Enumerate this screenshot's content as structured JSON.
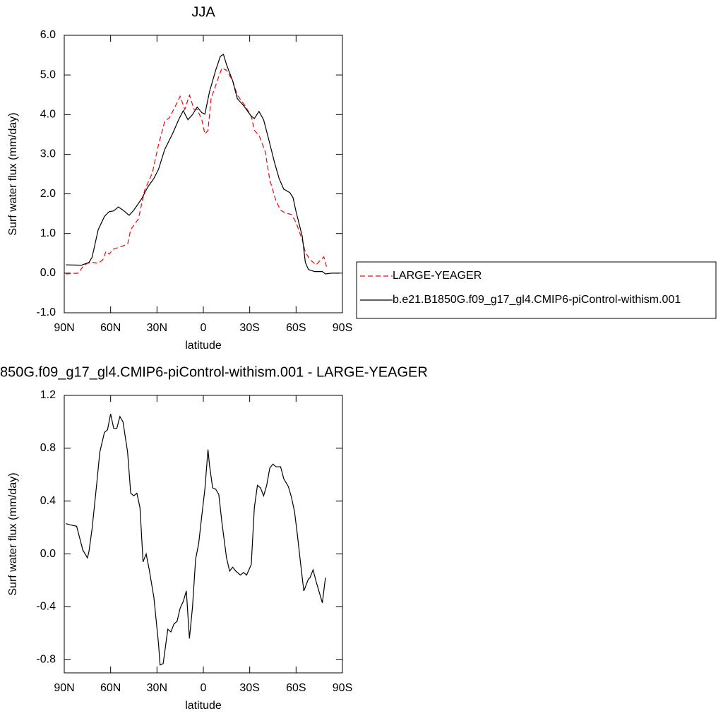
{
  "chart_data": [
    {
      "type": "line",
      "title": "JJA",
      "xlabel": "latitude",
      "ylabel": "Surf water flux (mm/day)",
      "xlim": [
        90,
        -90
      ],
      "xticks": [
        {
          "value": 90,
          "label": "90N"
        },
        {
          "value": 60,
          "label": "60N"
        },
        {
          "value": 30,
          "label": "30N"
        },
        0,
        {
          "value": -30,
          "label": "30S"
        },
        {
          "value": -60,
          "label": "60S"
        },
        {
          "value": -90,
          "label": "90S"
        }
      ],
      "ylim": [
        -1,
        6
      ],
      "yticks": [
        {
          "value": -1,
          "label": "-1.0"
        },
        {
          "value": 0,
          "label": "0.0"
        },
        {
          "value": 1,
          "label": "1.0"
        },
        {
          "value": 2,
          "label": "2.0"
        },
        {
          "value": 3,
          "label": "3.0"
        },
        {
          "value": 4,
          "label": "4.0"
        },
        {
          "value": 5,
          "label": "5.0"
        },
        {
          "value": 6,
          "label": "6.0"
        }
      ],
      "legend": "right",
      "series": [
        {
          "name": "LARGE-YEAGER",
          "color": "#ff0000",
          "dashed": true,
          "x": [
            89,
            81,
            78,
            75,
            71,
            68,
            65,
            63,
            61,
            58,
            54,
            49,
            47,
            42,
            38,
            33,
            29,
            25,
            22,
            18,
            15,
            12,
            9,
            6,
            4,
            1,
            -1,
            -3,
            -5,
            -9,
            -12,
            -15,
            -19,
            -22,
            -27,
            -31,
            -33,
            -36,
            -40,
            -43,
            -47,
            -50,
            -53,
            -57,
            -60,
            -64,
            -66,
            -69,
            -73,
            -76,
            -78,
            -80
          ],
          "values": [
            -0.02,
            0,
            0.16,
            0.25,
            0.27,
            0.25,
            0.34,
            0.55,
            0.48,
            0.61,
            0.66,
            0.73,
            1.1,
            1.37,
            2.09,
            2.53,
            3.24,
            3.83,
            3.92,
            4.22,
            4.46,
            4.13,
            4.49,
            4.13,
            4.13,
            3.87,
            3.51,
            3.6,
            4.4,
            4.85,
            5.17,
            5.12,
            4.85,
            4.49,
            4.22,
            3.96,
            3.6,
            3.48,
            3.07,
            2.35,
            1.82,
            1.59,
            1.52,
            1.48,
            1.28,
            0.84,
            0.53,
            0.34,
            0.21,
            0.34,
            0.41,
            0.12
          ]
        },
        {
          "name": "b.e21.B1850G.f09_g17_gl4.CMIP6-piControl-withism.001",
          "color": "#000000",
          "dashed": false,
          "x": [
            89,
            79,
            74,
            72,
            70,
            68,
            64,
            61,
            58,
            55,
            52,
            48,
            45,
            40,
            36,
            32,
            29,
            25,
            20,
            16,
            13,
            10,
            7,
            4,
            1,
            -1,
            -4,
            -8,
            -11,
            -13,
            -15,
            -19,
            -22,
            -26,
            -31,
            -33,
            -36,
            -39,
            -42,
            -46,
            -49,
            -52,
            -56,
            -58,
            -60,
            -64,
            -66,
            -68,
            -72,
            -77,
            -79,
            -83,
            -88
          ],
          "values": [
            0.21,
            0.2,
            0.27,
            0.4,
            0.75,
            1.1,
            1.43,
            1.55,
            1.57,
            1.67,
            1.59,
            1.46,
            1.59,
            1.87,
            2.17,
            2.39,
            2.62,
            3.12,
            3.51,
            3.87,
            4.1,
            3.87,
            4.0,
            4.19,
            4.05,
            4.01,
            4.58,
            5.12,
            5.47,
            5.52,
            5.26,
            4.85,
            4.4,
            4.23,
            3.96,
            3.9,
            4.08,
            3.87,
            3.42,
            2.8,
            2.39,
            2.12,
            2.03,
            1.91,
            1.55,
            0.93,
            0.27,
            0.09,
            0.04,
            0.04,
            -0.02,
            0,
            0
          ]
        }
      ]
    },
    {
      "type": "line",
      "title": "850G.f09_g17_gl4.CMIP6-piControl-withism.001 - LARGE-YEAGER",
      "xlabel": "latitude",
      "ylabel": "Surf water flux (mm/day)",
      "xlim": [
        90,
        -90
      ],
      "xticks": [
        {
          "value": 90,
          "label": "90N"
        },
        {
          "value": 60,
          "label": "60N"
        },
        {
          "value": 30,
          "label": "30N"
        },
        0,
        {
          "value": -30,
          "label": "30S"
        },
        {
          "value": -60,
          "label": "60S"
        },
        {
          "value": -90,
          "label": "90S"
        }
      ],
      "ylim": [
        -0.9,
        1.2
      ],
      "yticks": [
        -0.8,
        -0.4,
        {
          "value": 0,
          "label": "0.0"
        },
        0.4,
        0.8,
        1.2
      ],
      "series": [
        {
          "color": "#000000",
          "dashed": false,
          "x": [
            89,
            86,
            82,
            80,
            78,
            75,
            74,
            72,
            69,
            67,
            64,
            62,
            60,
            58,
            56,
            54,
            52,
            49,
            47,
            45,
            43,
            41,
            39,
            37,
            35,
            32,
            29,
            28,
            26,
            23,
            21,
            19,
            17,
            15,
            13,
            11,
            9,
            7,
            5,
            3,
            1,
            -1,
            -3,
            -4,
            -6,
            -8,
            -10,
            -12,
            -15,
            -17,
            -19,
            -21,
            -24,
            -26,
            -28,
            -31,
            -33,
            -35,
            -37,
            -39,
            -41,
            -43,
            -45,
            -47,
            -50,
            -52,
            -55,
            -57,
            -59,
            -61,
            -63,
            -65,
            -68,
            -69,
            -71,
            -73,
            -75,
            -77,
            -79
          ],
          "values": [
            0.23,
            0.22,
            0.21,
            0.12,
            0.03,
            -0.03,
            0.02,
            0.19,
            0.53,
            0.77,
            0.92,
            0.94,
            1.06,
            0.95,
            0.95,
            1.04,
            1.0,
            0.77,
            0.46,
            0.44,
            0.46,
            0.35,
            -0.06,
            0,
            -0.12,
            -0.33,
            -0.68,
            -0.84,
            -0.83,
            -0.57,
            -0.59,
            -0.53,
            -0.51,
            -0.41,
            -0.36,
            -0.28,
            -0.64,
            -0.4,
            -0.04,
            0.08,
            0.29,
            0.49,
            0.79,
            0.67,
            0.5,
            0.49,
            0.45,
            0.24,
            -0.03,
            -0.13,
            -0.1,
            -0.13,
            -0.16,
            -0.14,
            -0.16,
            -0.08,
            0.35,
            0.52,
            0.5,
            0.44,
            0.52,
            0.65,
            0.68,
            0.66,
            0.66,
            0.57,
            0.51,
            0.43,
            0.32,
            0.13,
            -0.08,
            -0.28,
            -0.19,
            -0.18,
            -0.12,
            -0.21,
            -0.29,
            -0.37,
            -0.18
          ]
        }
      ]
    }
  ]
}
